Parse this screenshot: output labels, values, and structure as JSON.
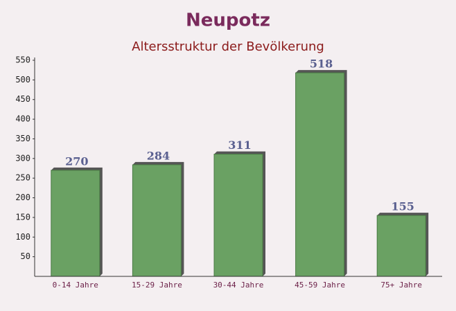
{
  "chart_data": {
    "type": "bar",
    "title": "Neupotz",
    "subtitle": "Altersstruktur der Bevölkerung",
    "categories": [
      "0-14 Jahre",
      "15-29 Jahre",
      "30-44 Jahre",
      "45-59 Jahre",
      "75+ Jahre"
    ],
    "values": [
      270,
      284,
      311,
      518,
      155
    ],
    "color": "#6aa163",
    "ylim": [
      0,
      550
    ],
    "yticks": [
      50,
      100,
      150,
      200,
      250,
      300,
      350,
      400,
      450,
      500,
      550
    ]
  }
}
